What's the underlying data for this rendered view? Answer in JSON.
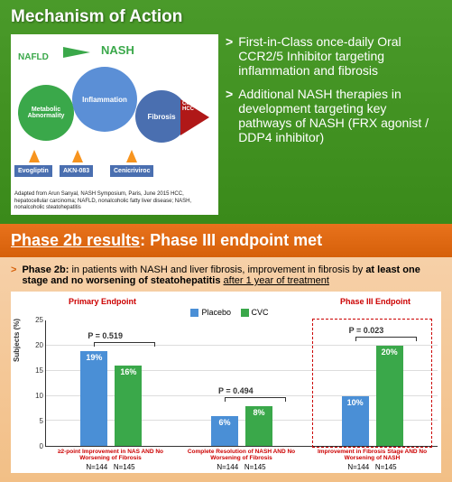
{
  "panel1": {
    "title": "Mechanism of Action",
    "diagram": {
      "nafld": "NAFLD",
      "nash": "NASH",
      "gears": {
        "metabolic": "Metabolic Abnormality",
        "inflammation": "Inflammation",
        "fibrosis": "Fibrosis"
      },
      "cirrhosis": "Cirrhosis HCC",
      "drugs": [
        "Evogliptin",
        "AKN-083",
        "Cenicriviroc"
      ],
      "citation": "Adapted from Arun Sanyal, NASH Symposium, Paris, June 2015\nHCC, hepatocellular carcinoma; NAFLD, nonalcoholic fatty liver disease; NASH, nonalcoholic steatohepatitis",
      "colors": {
        "green": "#3aa84a",
        "blue1": "#5b8fd6",
        "blue2": "#4a6fb0",
        "red": "#b01818",
        "orange": "#f7941e"
      }
    },
    "bullets": [
      "First-in-Class once-daily Oral CCR2/5 Inhibitor targeting inflammation and fibrosis",
      "Additional NASH therapies in development targeting key pathways of NASH (FRX agonist / DDP4 inhibitor)"
    ]
  },
  "panel2": {
    "title_u": "Phase 2b results",
    "title_rest": ": Phase III endpoint met",
    "lead_bold1": "Phase 2b:",
    "lead_mid": " in patients with NASH and liver fibrosis, improvement in fibrosis by ",
    "lead_bold2": "at least one stage and no worsening of steatohepatitis",
    "lead_mid2": " ",
    "lead_ul": "after 1 year of treatment",
    "chart": {
      "header_left": "Primary Endpoint",
      "header_right": "Phase III Endpoint",
      "legend": {
        "placebo": "Placebo",
        "cvc": "CVC"
      },
      "colors": {
        "placebo": "#4a8fd6",
        "cvc": "#3aa84a",
        "accent": "#c00",
        "grid": "#ddd"
      },
      "ylabel": "Subjects (%)",
      "ylim": [
        0,
        25
      ],
      "ytick_step": 5,
      "groups": [
        {
          "label": "≥2-point Improvement in NAS AND No Worsening of Fibrosis",
          "placebo": 19,
          "cvc": 16,
          "p": "P = 0.519",
          "n1": "N=144",
          "n2": "N=145"
        },
        {
          "label": "Complete Resolution of NASH AND No Worsening of Fibrosis",
          "placebo": 6,
          "cvc": 8,
          "p": "P = 0.494",
          "n1": "N=144",
          "n2": "N=145"
        },
        {
          "label": "Improvement in Fibrosis Stage AND No Worsening of NASH",
          "placebo": 10,
          "cvc": 20,
          "p": "P = 0.023",
          "n1": "N=144",
          "n2": "N=145"
        }
      ]
    }
  }
}
